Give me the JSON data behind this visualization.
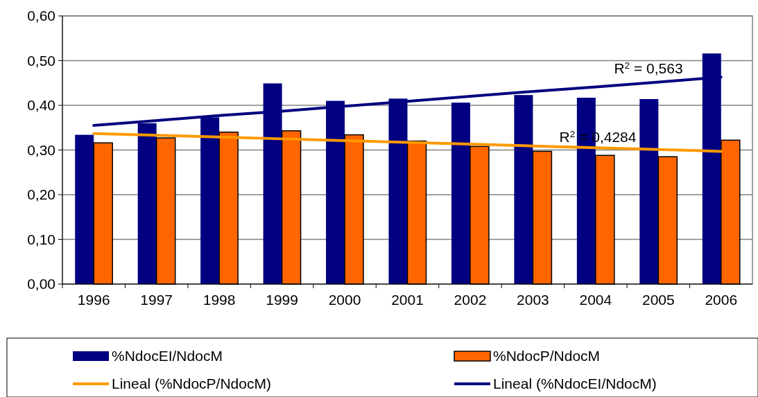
{
  "chart_data": {
    "type": "bar",
    "categories": [
      "1996",
      "1997",
      "1998",
      "1999",
      "2000",
      "2001",
      "2002",
      "2003",
      "2004",
      "2005",
      "2006"
    ],
    "series": [
      {
        "name": "%NdocEI/NdocM",
        "color": "#000080",
        "values": [
          0.334,
          0.36,
          0.373,
          0.449,
          0.41,
          0.415,
          0.406,
          0.423,
          0.417,
          0.414,
          0.516
        ]
      },
      {
        "name": "%NdocP/NdocM",
        "color": "#ff6600",
        "values": [
          0.316,
          0.327,
          0.34,
          0.343,
          0.334,
          0.32,
          0.308,
          0.297,
          0.288,
          0.285,
          0.322
        ]
      },
      {
        "name": "Lineal (%NdocP/NdocM)",
        "type": "line",
        "color": "#ff9900",
        "values": [
          0.337,
          0.333,
          0.329,
          0.325,
          0.321,
          0.317,
          0.313,
          0.309,
          0.305,
          0.301,
          0.297
        ]
      },
      {
        "name": "Lineal (%NdocEI/NdocM)",
        "type": "line",
        "color": "#000080",
        "values": [
          0.355,
          0.366,
          0.377,
          0.387,
          0.398,
          0.409,
          0.42,
          0.431,
          0.441,
          0.452,
          0.463
        ]
      }
    ],
    "ylim": [
      0,
      0.6
    ],
    "yticks": [
      {
        "value": 0,
        "label": "0,00"
      },
      {
        "value": 0.1,
        "label": "0,10"
      },
      {
        "value": 0.2,
        "label": "0,20"
      },
      {
        "value": 0.3,
        "label": "0,30"
      },
      {
        "value": 0.4,
        "label": "0,40"
      },
      {
        "value": 0.5,
        "label": "0,50"
      },
      {
        "value": 0.6,
        "label": "0,60"
      }
    ],
    "grid": "y",
    "legend": "bottom",
    "annotations": [
      "R$^{2}$ = 0,563",
      "R$^{2}$ = 0,4284"
    ]
  }
}
